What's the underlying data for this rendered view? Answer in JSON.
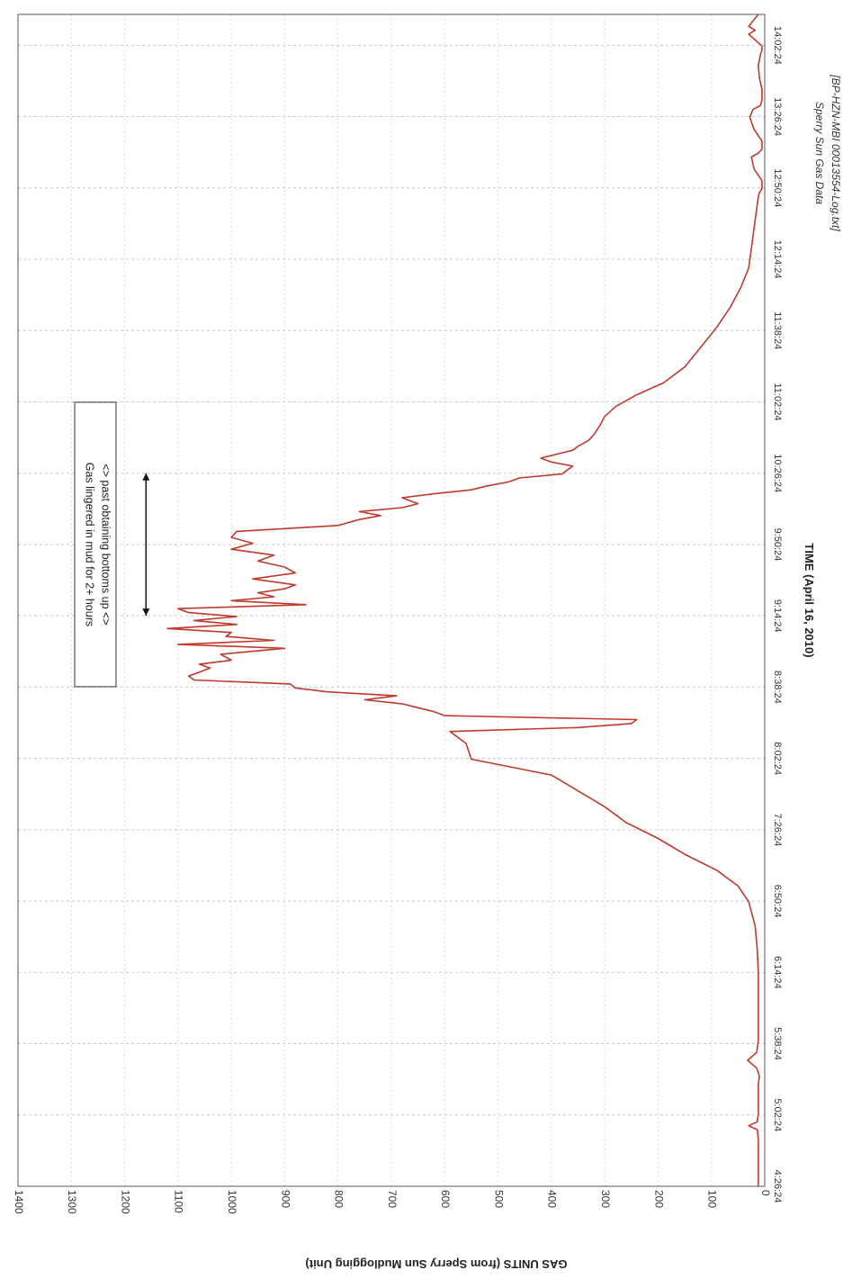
{
  "chart_data": {
    "type": "line",
    "xlabel": "TIME (April 16, 2010)",
    "ylabel": "GAS UNITS (from Sperry Sun Mudlogging Unit)",
    "ylim": [
      0,
      1400
    ],
    "y_ticks": [
      "0",
      "100",
      "200",
      "300",
      "400",
      "500",
      "600",
      "700",
      "800",
      "900",
      "1000",
      "1100",
      "1200",
      "1300",
      "1400"
    ],
    "x_start": "4:26:24",
    "x_end": "14:18:00",
    "x_ticks": [
      "4:26:24",
      "5:02:24",
      "5:38:24",
      "6:14:24",
      "6:50:24",
      "7:26:24",
      "8:02:24",
      "8:38:24",
      "9:14:24",
      "9:50:24",
      "10:26:24",
      "11:02:24",
      "11:38:24",
      "12:14:24",
      "12:50:24",
      "13:26:24",
      "14:02:24"
    ],
    "grid": true,
    "line_color": "#c0392b",
    "annotation": {
      "lines": [
        "Gas lingered in mud for 2+ hours",
        "<> past obtaining bottoms up <>"
      ],
      "arrow_from": "9:14:24",
      "arrow_to": "10:26:24",
      "arrow_y": 1160
    },
    "source": [
      "Sperry Sun Gas Data",
      "[BP-HZN-MBI 00013554-Log.txt]"
    ],
    "series": [
      {
        "x": [
          "4:26:24",
          "4:38:00",
          "4:50:00",
          "4:55:00",
          "4:57:00",
          "4:59:00",
          "5:03:00",
          "5:08:00",
          "5:14:00",
          "5:18:00",
          "5:22:00",
          "5:26:00",
          "5:30:00",
          "5:34:00",
          "5:40:00",
          "5:50:00",
          "6:02:00",
          "6:14:00",
          "6:26:00",
          "6:38:00",
          "6:50:00",
          "6:58:00",
          "7:06:00",
          "7:14:00",
          "7:22:00",
          "7:30:00",
          "7:38:00",
          "7:46:00",
          "7:54:00",
          "8:02:00",
          "8:10:00",
          "8:16:00",
          "8:18:00",
          "8:20:00",
          "8:22:00",
          "8:24:00",
          "8:26:00",
          "8:28:00",
          "8:30:00",
          "8:32:00",
          "8:34:00",
          "8:36:00",
          "8:38:00",
          "8:40:00",
          "8:42:00",
          "8:44:00",
          "8:46:00",
          "8:48:00",
          "8:50:00",
          "8:52:00",
          "8:55:00",
          "8:58:00",
          "9:00:00",
          "9:02:00",
          "9:04:00",
          "9:06:00",
          "9:08:00",
          "9:10:00",
          "9:12:00",
          "9:14:00",
          "9:16:00",
          "9:18:00",
          "9:20:00",
          "9:22:00",
          "9:24:00",
          "9:26:00",
          "9:28:00",
          "9:30:00",
          "9:33:00",
          "9:36:00",
          "9:39:00",
          "9:42:00",
          "9:45:00",
          "9:48:00",
          "9:51:00",
          "9:54:00",
          "9:57:00",
          "10:00:00",
          "10:03:00",
          "10:05:00",
          "10:07:00",
          "10:09:00",
          "10:11:00",
          "10:14:00",
          "10:16:00",
          "10:18:00",
          "10:20:00",
          "10:22:00",
          "10:24:00",
          "10:26:00",
          "10:28:00",
          "10:30:00",
          "10:32:00",
          "10:34:00",
          "10:36:00",
          "10:38:00",
          "10:40:00",
          "10:43:00",
          "10:46:00",
          "10:50:00",
          "10:55:00",
          "11:00:00",
          "11:06:00",
          "11:12:00",
          "11:20:00",
          "11:30:00",
          "11:40:00",
          "11:50:00",
          "12:00:00",
          "12:10:00",
          "12:20:00",
          "12:30:00",
          "12:40:00",
          "12:46:00",
          "12:48:00",
          "12:50:00",
          "12:54:00",
          "13:00:00",
          "13:06:00",
          "13:08:00",
          "13:10:00",
          "13:14:00",
          "13:20:00",
          "13:26:00",
          "13:30:00",
          "13:32:00",
          "13:35:00",
          "13:40:00",
          "13:46:00",
          "13:52:00",
          "13:58:00",
          "14:00:00",
          "14:02:00",
          "14:08:00",
          "14:10:00",
          "14:12:00",
          "14:18:00"
        ],
        "y": [
          12,
          12,
          12,
          14,
          30,
          14,
          12,
          12,
          12,
          12,
          10,
          15,
          32,
          15,
          12,
          12,
          12,
          12,
          14,
          18,
          30,
          50,
          90,
          150,
          200,
          260,
          300,
          350,
          400,
          550,
          560,
          590,
          350,
          250,
          240,
          600,
          620,
          650,
          680,
          750,
          690,
          820,
          880,
          890,
          1070,
          1080,
          1060,
          1040,
          1060,
          1000,
          1020,
          900,
          1100,
          920,
          1010,
          1000,
          1120,
          990,
          1070,
          990,
          1080,
          1100,
          860,
          1000,
          920,
          950,
          900,
          880,
          960,
          880,
          900,
          950,
          920,
          1000,
          960,
          1000,
          990,
          800,
          760,
          720,
          760,
          680,
          650,
          680,
          620,
          550,
          520,
          480,
          460,
          380,
          370,
          360,
          400,
          420,
          390,
          360,
          350,
          330,
          320,
          310,
          300,
          280,
          240,
          190,
          150,
          120,
          90,
          65,
          45,
          30,
          25,
          20,
          15,
          12,
          10,
          5,
          5,
          20,
          25,
          12,
          5,
          5,
          20,
          28,
          22,
          8,
          5,
          5,
          10,
          12,
          8,
          5,
          5,
          30,
          18,
          30,
          12
        ]
      }
    ]
  }
}
